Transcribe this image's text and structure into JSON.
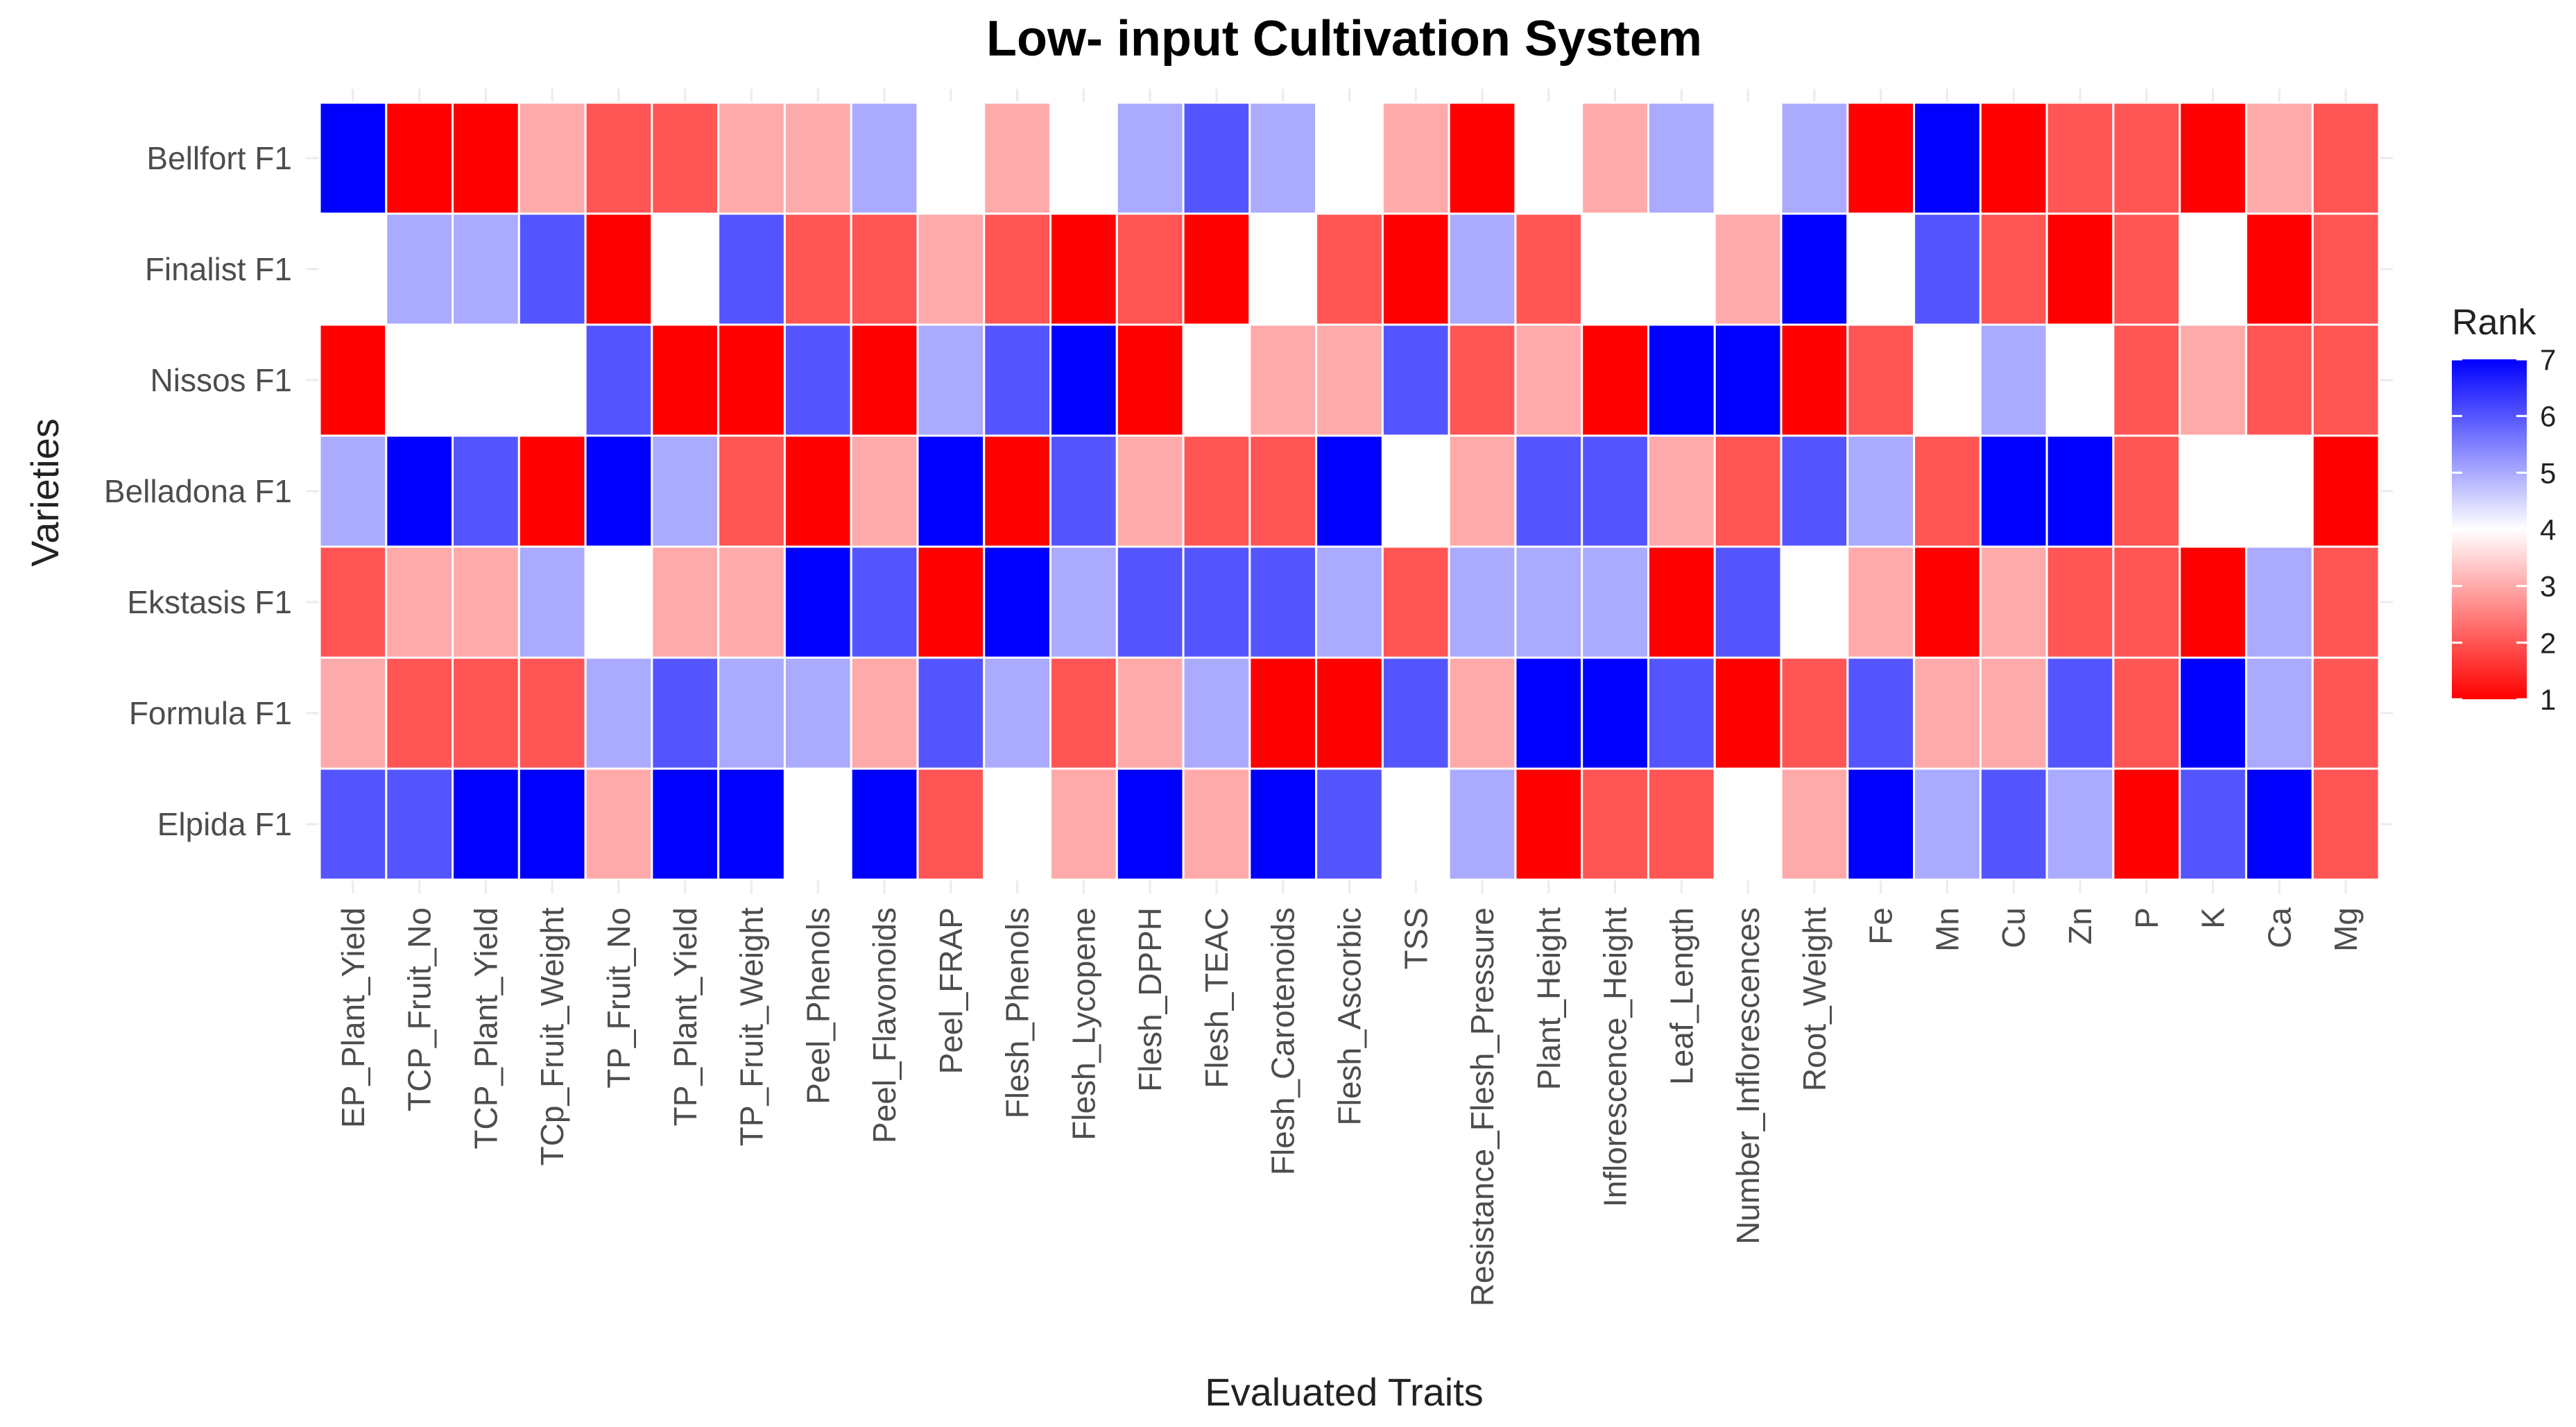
{
  "chart_data": {
    "type": "heatmap",
    "title": "Low- input Cultivation System",
    "xlabel": "Evaluated Traits",
    "ylabel": "Varieties",
    "x_categories": [
      "EP_Plant_Yield",
      "TCP_Fruit_No",
      "TCP_Plant_Yield",
      "TCp_Fruit_Weight",
      "TP_Fruit_No",
      "TP_Plant_Yield",
      "TP_Fruit_Weight",
      "Peel_Phenols",
      "Peel_Flavonoids",
      "Peel_FRAP",
      "Flesh_Phenols",
      "Flesh_Lycopene",
      "Flesh_DPPH",
      "Flesh_TEAC",
      "Flesh_Carotenoids",
      "Flesh_Ascorbic",
      "TSS",
      "Resistance_Flesh_Pressure",
      "Plant_Height",
      "Inflorescence_Height",
      "Leaf_Length",
      "Number_Inflorescences",
      "Root_Weight",
      "Fe",
      "Mn",
      "Cu",
      "Zn",
      "P",
      "K",
      "Ca",
      "Mg"
    ],
    "y_categories": [
      "Bellfort F1",
      "Finalist F1",
      "Nissos F1",
      "Belladona F1",
      "Ekstasis F1",
      "Formula F1",
      "Elpida F1"
    ],
    "values": [
      [
        7,
        1,
        1,
        3,
        2,
        2,
        3,
        3,
        5,
        4,
        3,
        4,
        5,
        6,
        5,
        4,
        3,
        1,
        4,
        3,
        5,
        4,
        5,
        1,
        7,
        1,
        2,
        2,
        1,
        3,
        2
      ],
      [
        4,
        5,
        5,
        6,
        1,
        4,
        6,
        2,
        2,
        3,
        2,
        1,
        2,
        1,
        4,
        2,
        1,
        5,
        2,
        4,
        4,
        3,
        7,
        4,
        6,
        2,
        1,
        2,
        4,
        1,
        2
      ],
      [
        1,
        4,
        4,
        4,
        6,
        1,
        1,
        6,
        1,
        5,
        6,
        7,
        1,
        4,
        3,
        3,
        6,
        2,
        3,
        1,
        7,
        7,
        1,
        2,
        4,
        5,
        4,
        2,
        3,
        2,
        2
      ],
      [
        5,
        7,
        6,
        1,
        7,
        5,
        2,
        1,
        3,
        7,
        1,
        6,
        3,
        2,
        2,
        7,
        4,
        3,
        6,
        6,
        3,
        2,
        6,
        5,
        2,
        7,
        7,
        2,
        4,
        4,
        1
      ],
      [
        2,
        3,
        3,
        5,
        4,
        3,
        3,
        7,
        6,
        1,
        7,
        5,
        6,
        6,
        6,
        5,
        2,
        5,
        5,
        5,
        1,
        6,
        4,
        3,
        1,
        3,
        2,
        2,
        1,
        5,
        2
      ],
      [
        3,
        2,
        2,
        2,
        5,
        6,
        5,
        5,
        3,
        6,
        5,
        2,
        3,
        5,
        1,
        1,
        6,
        3,
        7,
        7,
        6,
        1,
        2,
        6,
        3,
        3,
        6,
        2,
        7,
        5,
        2
      ],
      [
        6,
        6,
        7,
        7,
        3,
        7,
        7,
        4,
        7,
        2,
        4,
        3,
        7,
        3,
        7,
        6,
        4,
        5,
        1,
        2,
        2,
        4,
        3,
        7,
        5,
        6,
        5,
        1,
        6,
        7,
        2
      ]
    ],
    "legend": {
      "title": "Rank",
      "ticks": [
        1,
        2,
        3,
        4,
        5,
        6,
        7
      ],
      "low_color": "#ff0000",
      "mid_color": "#ffffff",
      "high_color": "#0000ff"
    }
  }
}
